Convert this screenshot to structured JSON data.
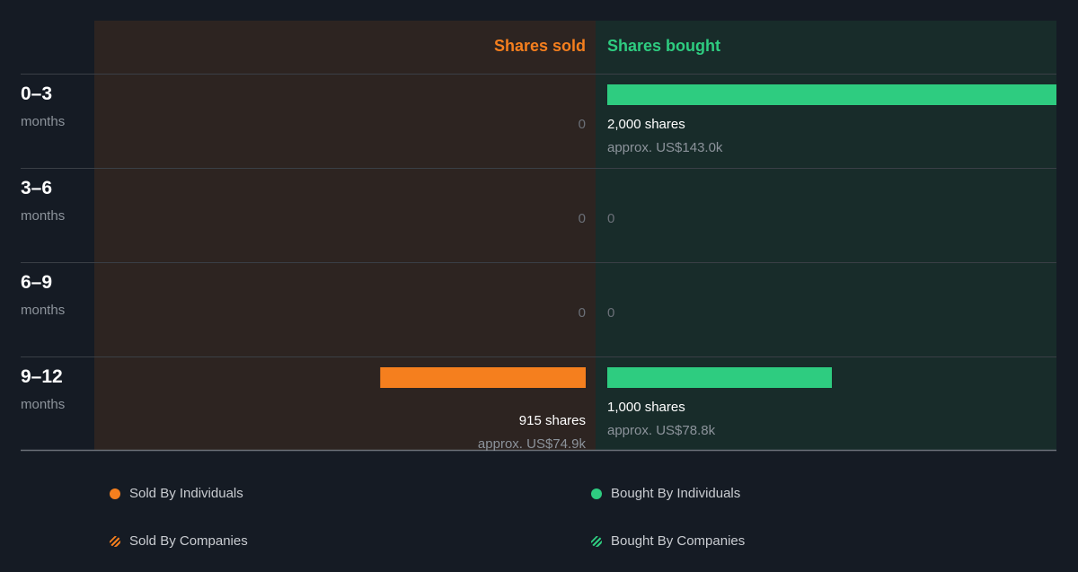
{
  "colors": {
    "background": "#151b24",
    "sold_panel": "#2d2421",
    "bought_panel": "#182c2a",
    "sold": "#f57f1e",
    "bought": "#2ecc80",
    "divider": "#3a3f46",
    "muted_text": "#8c939b",
    "row_label": "#ffffff"
  },
  "chart_data": {
    "type": "bar",
    "orientation": "horizontal-diverging",
    "headers": {
      "sold": "Shares sold",
      "bought": "Shares bought"
    },
    "unit_label": "months",
    "max_shares": 2000,
    "rows": [
      {
        "label": "0–3",
        "sold_shares": 0,
        "sold_text": "0",
        "sold_value": "",
        "bought_shares": 2000,
        "bought_text": "2,000 shares",
        "bought_value": "approx. US$143.0k"
      },
      {
        "label": "3–6",
        "sold_shares": 0,
        "sold_text": "0",
        "sold_value": "",
        "bought_shares": 0,
        "bought_text": "0",
        "bought_value": ""
      },
      {
        "label": "6–9",
        "sold_shares": 0,
        "sold_text": "0",
        "sold_value": "",
        "bought_shares": 0,
        "bought_text": "0",
        "bought_value": ""
      },
      {
        "label": "9–12",
        "sold_shares": 915,
        "sold_text": "915 shares",
        "sold_value": "approx. US$74.9k",
        "bought_shares": 1000,
        "bought_text": "1,000 shares",
        "bought_value": "approx. US$78.8k"
      }
    ],
    "legend": [
      {
        "label": "Sold By Individuals",
        "style": "solid",
        "color": "#f57f1e"
      },
      {
        "label": "Bought By Individuals",
        "style": "solid",
        "color": "#2ecc80"
      },
      {
        "label": "Sold By Companies",
        "style": "striped",
        "color": "#f57f1e"
      },
      {
        "label": "Bought By Companies",
        "style": "striped",
        "color": "#2ecc80"
      }
    ]
  }
}
